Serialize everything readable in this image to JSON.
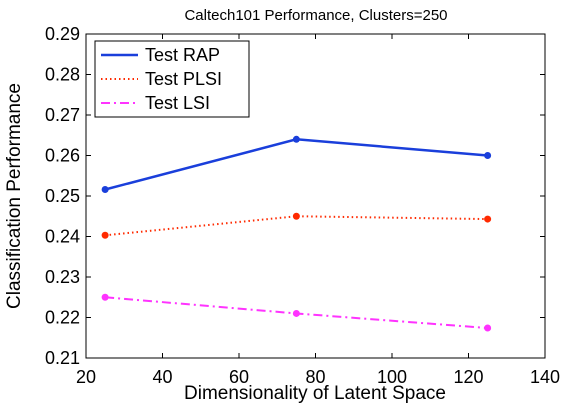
{
  "chart_data": {
    "type": "line",
    "title": "Caltech101 Performance, Clusters=250",
    "xlabel": "Dimensionality of Latent Space",
    "ylabel": "Classification Performance",
    "xlim": [
      20,
      140
    ],
    "ylim": [
      0.21,
      0.29
    ],
    "x_ticks": [
      "20",
      "40",
      "60",
      "80",
      "100",
      "120",
      "140"
    ],
    "y_ticks": [
      "0.21",
      "0.22",
      "0.23",
      "0.24",
      "0.25",
      "0.26",
      "0.27",
      "0.28",
      "0.29"
    ],
    "x": [
      25,
      75,
      125
    ],
    "grid": false,
    "legend_position": "top-left",
    "series": [
      {
        "name": "Test RAP",
        "values": [
          0.2516,
          0.264,
          0.26
        ],
        "color": "#1a3fdb",
        "style": "solid"
      },
      {
        "name": "Test PLSI",
        "values": [
          0.2403,
          0.245,
          0.2443
        ],
        "color": "#ff2a00",
        "style": "dotted"
      },
      {
        "name": "Test LSI",
        "values": [
          0.225,
          0.221,
          0.2174
        ],
        "color": "#ff33ff",
        "style": "dashdot"
      }
    ]
  }
}
